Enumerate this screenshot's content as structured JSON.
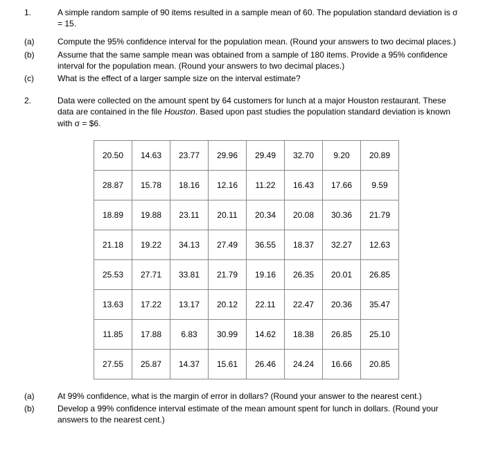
{
  "q1": {
    "num": "1.",
    "intro": "A simple random sample of 90 items resulted in a sample mean of 60. The population standard deviation is σ = 15.",
    "parts": [
      {
        "label": "(a)",
        "text": "Compute the 95% confidence interval for the population mean. (Round your answers to two decimal places.)"
      },
      {
        "label": "(b)",
        "text": "Assume that the same sample mean was obtained from a sample of 180 items. Provide a 95% confidence interval for the population mean. (Round your answers to two decimal places.)"
      },
      {
        "label": "(c)",
        "text": "What is the effect of a larger sample size on the interval estimate?"
      }
    ]
  },
  "q2": {
    "num": "2.",
    "intro_pre": "Data were collected on the amount spent by 64 customers for lunch at a major Houston restaurant. These data are contained in the file ",
    "intro_file": "Houston",
    "intro_post": ". Based upon past studies the population standard deviation is known with σ = $6.",
    "table": {
      "rows": [
        [
          "20.50",
          "14.63",
          "23.77",
          "29.96",
          "29.49",
          "32.70",
          "9.20",
          "20.89"
        ],
        [
          "28.87",
          "15.78",
          "18.16",
          "12.16",
          "11.22",
          "16.43",
          "17.66",
          "9.59"
        ],
        [
          "18.89",
          "19.88",
          "23.11",
          "20.11",
          "20.34",
          "20.08",
          "30.36",
          "21.79"
        ],
        [
          "21.18",
          "19.22",
          "34.13",
          "27.49",
          "36.55",
          "18.37",
          "32.27",
          "12.63"
        ],
        [
          "25.53",
          "27.71",
          "33.81",
          "21.79",
          "19.16",
          "26.35",
          "20.01",
          "26.85"
        ],
        [
          "13.63",
          "17.22",
          "13.17",
          "20.12",
          "22.11",
          "22.47",
          "20.36",
          "35.47"
        ],
        [
          "11.85",
          "17.88",
          "6.83",
          "30.99",
          "14.62",
          "18.38",
          "26.85",
          "25.10"
        ],
        [
          "27.55",
          "25.87",
          "14.37",
          "15.61",
          "26.46",
          "24.24",
          "16.66",
          "20.85"
        ]
      ]
    },
    "parts": [
      {
        "label": "(a)",
        "text": "At 99% confidence, what is the margin of error in dollars? (Round your answer to the nearest cent.)"
      },
      {
        "label": "(b)",
        "text": "Develop a 99% confidence interval estimate of the mean amount spent for lunch in dollars. (Round your answers to the nearest cent.)"
      }
    ]
  }
}
